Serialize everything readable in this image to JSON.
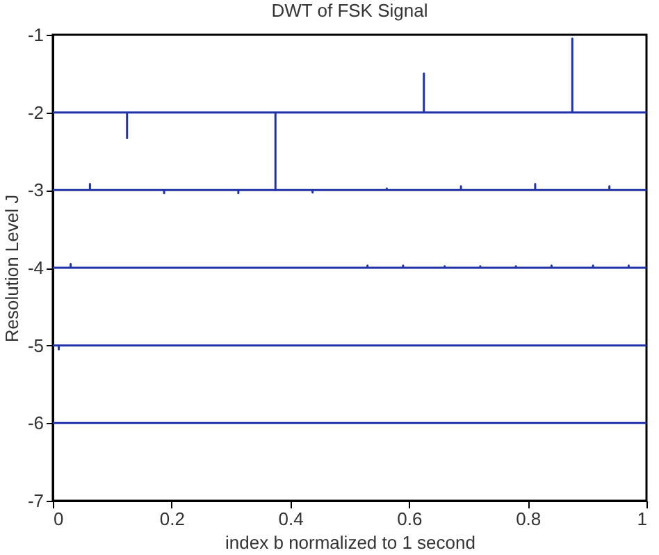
{
  "chart_data": {
    "type": "line",
    "title": "DWT of FSK Signal",
    "xlabel": "index b normalized to 1 second",
    "ylabel": "Resolution Level J",
    "xlim": [
      0,
      1
    ],
    "xticks": [
      0,
      0.2,
      0.4,
      0.6,
      0.8,
      1
    ],
    "ylim": [
      -7,
      -1
    ],
    "yticks": [
      -7,
      -6,
      -5,
      -4,
      -3,
      -2,
      -1
    ],
    "grid": false,
    "marker": "none",
    "line_style": "solid",
    "series": [
      {
        "color": "#2233aa",
        "x": [
          0,
          0.125,
          0.125,
          0.125,
          0.375,
          0.375,
          0.375,
          0.625,
          0.625,
          0.625,
          0.875,
          0.875,
          0.875,
          1
        ],
        "values": [
          -2,
          -2,
          -2.33,
          -2,
          -2,
          -3,
          -2,
          -2,
          -1.5,
          -2,
          -2,
          -1.05,
          -2,
          -2
        ]
      },
      {
        "color": "#2233aa",
        "x": [
          0,
          0.0625,
          0.0625,
          0.0625,
          0.1875,
          0.1875,
          0.1875,
          0.3125,
          0.3125,
          0.3125,
          0.4375,
          0.4375,
          0.4375,
          0.5625,
          0.5625,
          0.5625,
          0.6875,
          0.6875,
          0.6875,
          0.8125,
          0.8125,
          0.8125,
          0.9375,
          0.9375,
          0.9375,
          1
        ],
        "values": [
          -3,
          -3,
          -2.92,
          -3,
          -3,
          -3.04,
          -3,
          -3,
          -3.04,
          -3,
          -3,
          -3.03,
          -3,
          -3,
          -2.98,
          -3,
          -3,
          -2.95,
          -3,
          -3,
          -2.92,
          -3,
          -3,
          -2.95,
          -3,
          -3
        ]
      },
      {
        "color": "#2233aa",
        "x": [
          0,
          0.03,
          0.03,
          0.03,
          0.53,
          0.53,
          0.53,
          0.59,
          0.59,
          0.59,
          0.66,
          0.66,
          0.66,
          0.72,
          0.72,
          0.72,
          0.78,
          0.78,
          0.78,
          0.84,
          0.84,
          0.84,
          0.91,
          0.91,
          0.91,
          0.97,
          0.97,
          0.97,
          1
        ],
        "values": [
          -4,
          -4,
          -3.95,
          -4,
          -4,
          -3.97,
          -4,
          -4,
          -3.97,
          -4,
          -4,
          -3.98,
          -4,
          -4,
          -3.98,
          -4,
          -4,
          -3.98,
          -4,
          -4,
          -3.97,
          -4,
          -4,
          -3.97,
          -4,
          -4,
          -3.97,
          -4,
          -4
        ]
      },
      {
        "color": "#2233aa",
        "x": [
          0,
          0.01,
          0.01,
          0.01,
          1
        ],
        "values": [
          -5,
          -5,
          -5.05,
          -5,
          -5
        ]
      },
      {
        "color": "#2233aa",
        "x": [
          0,
          1
        ],
        "values": [
          -6,
          -6
        ]
      }
    ]
  }
}
